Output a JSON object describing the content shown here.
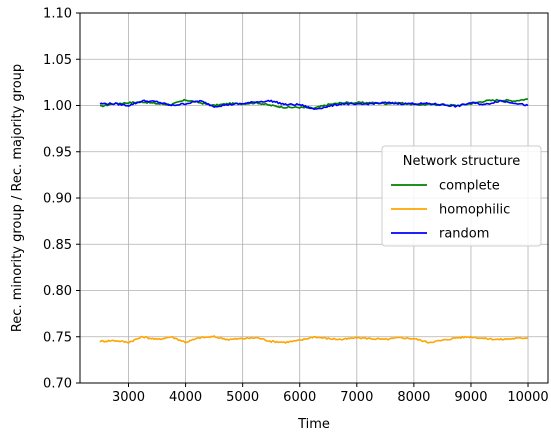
{
  "chart_data": {
    "type": "line",
    "xlabel": "Time",
    "ylabel": "Rec. minority group / Rec. majority group",
    "xlim": [
      2150,
      10350
    ],
    "ylim": [
      0.7,
      1.1
    ],
    "xticks": [
      3000,
      4000,
      5000,
      6000,
      7000,
      8000,
      9000,
      10000
    ],
    "yticks": [
      0.7,
      0.75,
      0.8,
      0.85,
      0.9,
      0.95,
      1.0,
      1.05,
      1.1
    ],
    "ytick_labels": [
      "0.70",
      "0.75",
      "0.80",
      "0.85",
      "0.90",
      "0.95",
      "1.00",
      "1.05",
      "1.10"
    ],
    "grid": true,
    "legend": {
      "title": "Network structure",
      "placement": "center-right"
    },
    "series": [
      {
        "name": "complete",
        "color": "#008000",
        "x": [
          2500,
          2750,
          3000,
          3250,
          3500,
          3750,
          4000,
          4250,
          4500,
          4750,
          5000,
          5250,
          5500,
          5750,
          6000,
          6250,
          6500,
          6750,
          7000,
          7250,
          7500,
          7750,
          8000,
          8250,
          8500,
          8750,
          9000,
          9250,
          9500,
          9750,
          10000
        ],
        "values": [
          0.999,
          1.002,
          1.003,
          1.004,
          1.002,
          1.001,
          1.006,
          1.003,
          1.0,
          1.002,
          1.002,
          1.003,
          1.0,
          0.998,
          0.998,
          0.997,
          1.001,
          1.003,
          1.003,
          1.003,
          1.002,
          1.003,
          1.001,
          1.001,
          1.001,
          1.0,
          1.002,
          1.005,
          1.006,
          1.005,
          1.007
        ]
      },
      {
        "name": "homophilic",
        "color": "#ffa500",
        "x": [
          2500,
          2750,
          3000,
          3250,
          3500,
          3750,
          4000,
          4250,
          4500,
          4750,
          5000,
          5250,
          5500,
          5750,
          6000,
          6250,
          6500,
          6750,
          7000,
          7250,
          7500,
          7750,
          8000,
          8250,
          8500,
          8750,
          9000,
          9250,
          9500,
          9750,
          10000
        ],
        "values": [
          0.745,
          0.746,
          0.744,
          0.75,
          0.747,
          0.75,
          0.744,
          0.749,
          0.75,
          0.747,
          0.748,
          0.749,
          0.745,
          0.744,
          0.746,
          0.75,
          0.748,
          0.747,
          0.749,
          0.748,
          0.747,
          0.749,
          0.748,
          0.744,
          0.746,
          0.749,
          0.75,
          0.748,
          0.747,
          0.748,
          0.749
        ]
      },
      {
        "name": "random",
        "color": "#0000ff",
        "x": [
          2500,
          2750,
          3000,
          3250,
          3500,
          3750,
          4000,
          4250,
          4500,
          4750,
          5000,
          5250,
          5500,
          5750,
          6000,
          6250,
          6500,
          6750,
          7000,
          7250,
          7500,
          7750,
          8000,
          8250,
          8500,
          8750,
          9000,
          9250,
          9500,
          9750,
          10000
        ],
        "values": [
          1.002,
          1.002,
          1.0,
          1.005,
          1.004,
          1.0,
          1.002,
          1.005,
          0.999,
          1.001,
          1.002,
          1.004,
          1.005,
          1.001,
          1.001,
          0.996,
          0.999,
          1.002,
          1.001,
          1.002,
          1.003,
          1.002,
          1.002,
          1.002,
          1.001,
          0.999,
          1.003,
          1.001,
          1.005,
          1.003,
          1.0
        ]
      }
    ]
  }
}
